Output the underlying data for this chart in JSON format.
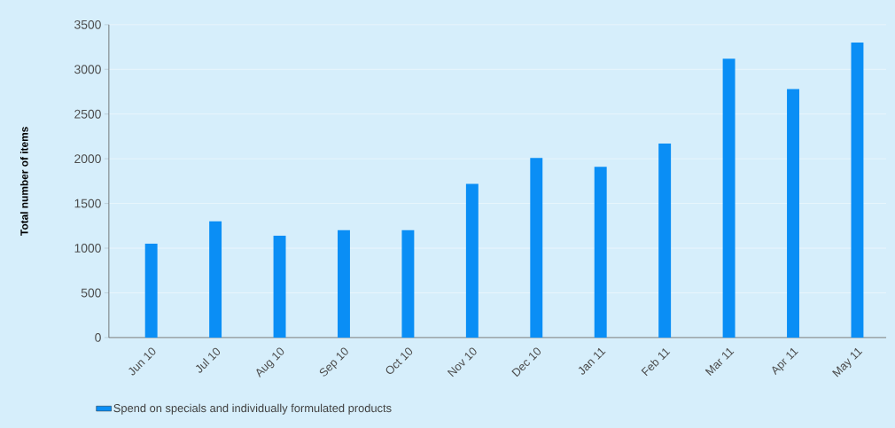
{
  "chart_data": {
    "type": "bar",
    "ylabel": "Total number of items",
    "categories": [
      "Jun 10",
      "Jul 10",
      "Aug 10",
      "Sep 10",
      "Oct 10",
      "Nov 10",
      "Dec 10",
      "Jan 11",
      "Feb 11",
      "Mar 11",
      "Apr 11",
      "May 11"
    ],
    "series": [
      {
        "name": "Spend on specials and individually formulated products",
        "color": "#0a8ef5",
        "values": [
          1050,
          1300,
          1140,
          1200,
          1200,
          1720,
          2010,
          1910,
          2170,
          3120,
          2780,
          3300
        ]
      }
    ],
    "ylim": [
      0,
      3500
    ],
    "yticks": [
      0,
      500,
      1000,
      1500,
      2000,
      2500,
      3000,
      3500
    ],
    "grid": "y",
    "legend": "bottom"
  }
}
